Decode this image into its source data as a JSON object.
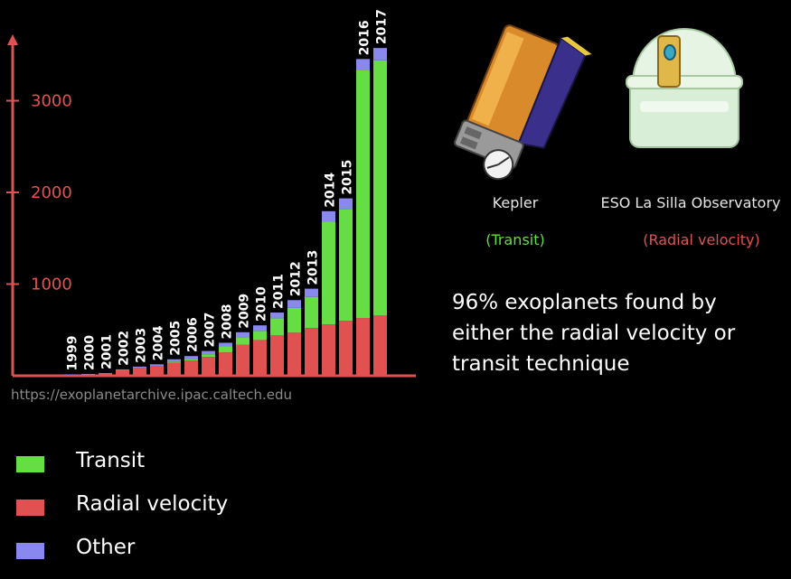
{
  "chart_data": {
    "type": "bar",
    "stacked": true,
    "categories": [
      "1999",
      "2000",
      "2001",
      "2002",
      "2003",
      "2004",
      "2005",
      "2006",
      "2007",
      "2008",
      "2009",
      "2010",
      "2011",
      "2012",
      "2013",
      "2014",
      "2015",
      "2016",
      "2017"
    ],
    "series": [
      {
        "name": "Radial velocity",
        "color": "#e05252",
        "values": [
          10,
          15,
          25,
          60,
          85,
          100,
          140,
          165,
          205,
          255,
          340,
          390,
          440,
          470,
          520,
          560,
          600,
          630,
          660
        ]
      },
      {
        "name": "Transit",
        "color": "#66dd44",
        "values": [
          0,
          0,
          0,
          0,
          0,
          5,
          15,
          20,
          30,
          65,
          80,
          100,
          185,
          270,
          340,
          1120,
          1220,
          2700,
          2780
        ]
      },
      {
        "name": "Other",
        "color": "#8888ee",
        "values": [
          5,
          5,
          5,
          10,
          15,
          20,
          25,
          30,
          35,
          40,
          55,
          60,
          65,
          85,
          90,
          115,
          115,
          125,
          135
        ]
      }
    ],
    "yticks": [
      1000,
      2000,
      3000
    ],
    "ylim": [
      0,
      3800
    ],
    "grid": false,
    "legend_position": "bottom-left",
    "axis_color": "#e05252"
  },
  "source_text": "https://exoplanetarchive.ipac.caltech.edu",
  "legend": [
    {
      "label": "Transit",
      "color": "#66dd44"
    },
    {
      "label": "Radial velocity",
      "color": "#e05252"
    },
    {
      "label": "Other",
      "color": "#8888ee"
    }
  ],
  "telescopes": [
    {
      "name": "Kepler",
      "method": "(Transit)",
      "method_color": "#66dd44"
    },
    {
      "name": "ESO La Silla Observatory",
      "method": "(Radial velocity)",
      "method_color": "#e05252"
    }
  ],
  "statement": "96% exoplanets found by either the radial velocity or transit technique"
}
